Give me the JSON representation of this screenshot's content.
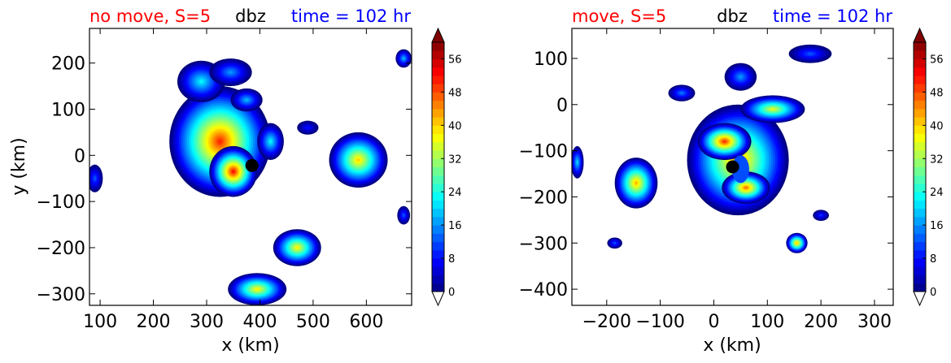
{
  "colors": {
    "title_left": "#ff0000",
    "title_center": "#000000",
    "title_right": "#0000ff",
    "colormap": "jet"
  },
  "chart_data": [
    {
      "type": "contourf",
      "title_left": "no move, S=5",
      "title_center": "dbz",
      "title_right": "time = 102 hr",
      "xlabel": "x (km)",
      "ylabel": "y (km)",
      "xlim": [
        80,
        685
      ],
      "ylim": [
        -325,
        275
      ],
      "xticks": [
        100,
        200,
        300,
        400,
        500,
        600
      ],
      "xtick_labels": [
        "100",
        "200",
        "300",
        "400",
        "500",
        "600"
      ],
      "yticks": [
        200,
        100,
        0,
        -100,
        -200,
        -300
      ],
      "ytick_labels": [
        "200",
        "100",
        "0",
        "−100",
        "−200",
        "−300"
      ],
      "center_marker": {
        "x": 385,
        "y": -22
      },
      "colorbar": {
        "levels": [
          0,
          60
        ],
        "extend": "both",
        "ticks": [
          "0",
          "8",
          "16",
          "24",
          "32",
          "40",
          "48",
          "56"
        ]
      },
      "blobs": [
        {
          "x": 325,
          "y": 30,
          "rx": 95,
          "ry": 120,
          "peak": 50
        },
        {
          "x": 350,
          "y": -35,
          "rx": 45,
          "ry": 55,
          "peak": 52
        },
        {
          "x": 290,
          "y": 160,
          "rx": 45,
          "ry": 45,
          "peak": 22
        },
        {
          "x": 345,
          "y": 180,
          "rx": 40,
          "ry": 30,
          "peak": 16
        },
        {
          "x": 585,
          "y": -10,
          "rx": 55,
          "ry": 60,
          "peak": 40
        },
        {
          "x": 470,
          "y": -200,
          "rx": 45,
          "ry": 40,
          "peak": 38
        },
        {
          "x": 395,
          "y": -290,
          "rx": 55,
          "ry": 35,
          "peak": 38
        },
        {
          "x": 90,
          "y": -50,
          "rx": 15,
          "ry": 30,
          "peak": 12
        },
        {
          "x": 670,
          "y": 210,
          "rx": 15,
          "ry": 20,
          "peak": 18
        },
        {
          "x": 670,
          "y": -130,
          "rx": 12,
          "ry": 20,
          "peak": 12
        },
        {
          "x": 490,
          "y": 60,
          "rx": 20,
          "ry": 15,
          "peak": 8
        },
        {
          "x": 375,
          "y": 120,
          "rx": 30,
          "ry": 25,
          "peak": 18
        },
        {
          "x": 420,
          "y": 30,
          "rx": 25,
          "ry": 40,
          "peak": 22
        }
      ]
    },
    {
      "type": "contourf",
      "title_left": "move, S=5",
      "title_center": "dbz",
      "title_right": "time = 102 hr",
      "xlabel": "x (km)",
      "ylabel": "",
      "xlim": [
        -265,
        335
      ],
      "ylim": [
        -435,
        165
      ],
      "xticks": [
        -200,
        -100,
        0,
        100,
        200,
        300
      ],
      "xtick_labels": [
        "−200",
        "−100",
        "0",
        "100",
        "200",
        "300"
      ],
      "yticks": [
        100,
        0,
        -100,
        -200,
        -300,
        -400
      ],
      "ytick_labels": [
        "100",
        "0",
        "−100",
        "−200",
        "−300",
        "−400"
      ],
      "center_marker": {
        "x": 35,
        "y": -135
      },
      "colorbar": {
        "levels": [
          0,
          60
        ],
        "extend": "both",
        "ticks": [
          "0",
          "8",
          "16",
          "24",
          "32",
          "40",
          "48",
          "56"
        ]
      },
      "blobs": [
        {
          "x": 45,
          "y": -120,
          "rx": 95,
          "ry": 120,
          "peak": 44
        },
        {
          "x": 20,
          "y": -80,
          "rx": 50,
          "ry": 40,
          "peak": 50
        },
        {
          "x": 60,
          "y": -180,
          "rx": 45,
          "ry": 35,
          "peak": 46
        },
        {
          "x": 110,
          "y": -10,
          "rx": 60,
          "ry": 30,
          "peak": 36
        },
        {
          "x": -145,
          "y": -170,
          "rx": 40,
          "ry": 55,
          "peak": 42
        },
        {
          "x": 155,
          "y": -300,
          "rx": 20,
          "ry": 22,
          "peak": 42
        },
        {
          "x": 50,
          "y": 60,
          "rx": 30,
          "ry": 30,
          "peak": 16
        },
        {
          "x": -60,
          "y": 25,
          "rx": 25,
          "ry": 18,
          "peak": 14
        },
        {
          "x": -255,
          "y": -125,
          "rx": 12,
          "ry": 35,
          "peak": 20
        },
        {
          "x": -185,
          "y": -300,
          "rx": 14,
          "ry": 12,
          "peak": 12
        },
        {
          "x": 180,
          "y": 110,
          "rx": 40,
          "ry": 20,
          "peak": 12
        },
        {
          "x": 200,
          "y": -240,
          "rx": 15,
          "ry": 12,
          "peak": 10
        }
      ]
    }
  ]
}
